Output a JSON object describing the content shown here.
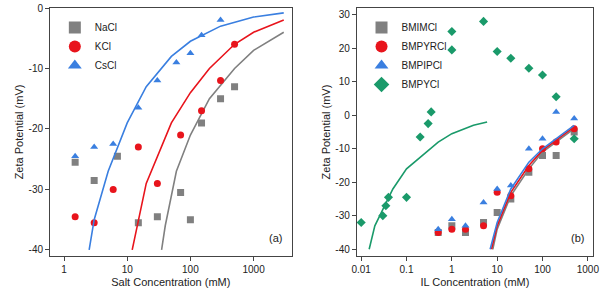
{
  "chart_data": [
    {
      "type": "scatter",
      "xlabel": "Salt Concentration (mM)",
      "ylabel": "Zeta Potential (mV)",
      "annotations": [
        "(a)"
      ],
      "log": "x",
      "xlim": [
        0.6,
        4000
      ],
      "xticks": [
        1,
        10,
        100,
        1000
      ],
      "ylim": [
        -41,
        0
      ],
      "yticks": [
        -40,
        -30,
        -20,
        -10,
        0
      ],
      "legend": "top left",
      "series": [
        {
          "name": "NaCl",
          "color": "#808080",
          "marker": "square",
          "x": [
            1.5,
            3,
            7,
            15,
            30,
            70,
            100,
            150,
            300,
            500
          ],
          "values": [
            -25.5,
            -28.5,
            -24.5,
            -35.5,
            -34.5,
            -30.5,
            -35,
            -19,
            -15,
            -13
          ],
          "fit": {
            "x": [
              35,
              40,
              60,
              100,
              200,
              500,
              1000,
              3000
            ],
            "values": [
              -40,
              -36,
              -27,
              -21,
              -15,
              -10,
              -7,
              -4
            ]
          }
        },
        {
          "name": "KCl",
          "color": "#e8141c",
          "marker": "circle",
          "x": [
            1.5,
            3,
            6,
            15,
            30,
            70,
            150,
            300,
            500
          ],
          "values": [
            -34.5,
            -35.5,
            -30,
            -23,
            -29,
            -21,
            -17,
            -12,
            -6
          ],
          "fit": {
            "x": [
              12,
              15,
              20,
              50,
              100,
              200,
              500,
              1000,
              3000
            ],
            "values": [
              -40,
              -35,
              -29,
              -19,
              -14,
              -10,
              -6,
              -4,
              -2
            ]
          }
        },
        {
          "name": "CsCl",
          "color": "#3a7fe0",
          "marker": "triangle-up",
          "x": [
            1.5,
            3,
            6,
            15,
            30,
            60,
            100,
            150,
            300
          ],
          "values": [
            -24.5,
            -23,
            -22.5,
            -16.5,
            -12,
            -9,
            -7.5,
            -4.5,
            -2
          ],
          "fit": {
            "x": [
              2.5,
              3,
              5,
              10,
              20,
              50,
              100,
              300,
              1000,
              3000
            ],
            "values": [
              -40,
              -35,
              -27,
              -19,
              -13,
              -8,
              -5.5,
              -3,
              -1.5,
              -0.8
            ]
          }
        }
      ]
    },
    {
      "type": "scatter",
      "xlabel": "IL Concentration (mM)",
      "ylabel": "Zeta Potential (mV)",
      "annotations": [
        "(b)"
      ],
      "log": "x",
      "xlim": [
        0.008,
        1300
      ],
      "xticks": [
        0.01,
        0.1,
        1,
        10,
        100,
        1000
      ],
      "ylim": [
        -42,
        32
      ],
      "yticks": [
        -40,
        -30,
        -20,
        -10,
        0,
        10,
        20,
        30
      ],
      "legend": "top left",
      "series": [
        {
          "name": "BMIMCl",
          "color": "#808080",
          "marker": "square",
          "x": [
            0.5,
            1,
            2,
            5,
            10,
            20,
            50,
            100,
            200,
            500
          ],
          "values": [
            -35,
            -33,
            -35,
            -32,
            -29,
            -25,
            -17,
            -12,
            -12,
            -5
          ],
          "fit": {
            "x": [
              8,
              10,
              20,
              50,
              100,
              200,
              500
            ],
            "values": [
              -40,
              -34,
              -24,
              -16,
              -11,
              -8,
              -4
            ]
          }
        },
        {
          "name": "BMPYRCl",
          "color": "#e8141c",
          "marker": "circle",
          "x": [
            0.5,
            1,
            2,
            5,
            10,
            20,
            50,
            100,
            200,
            500
          ],
          "values": [
            -35,
            -34,
            -34,
            -33,
            -23,
            -24,
            -16,
            -10,
            -8,
            -4
          ],
          "fit": {
            "x": [
              7.5,
              10,
              20,
              50,
              100,
              200,
              500
            ],
            "values": [
              -40,
              -33,
              -23,
              -15,
              -10.5,
              -7.5,
              -3.5
            ]
          }
        },
        {
          "name": "BMPIPCl",
          "color": "#3a7fe0",
          "marker": "triangle-up",
          "x": [
            0.5,
            1,
            2,
            5,
            10,
            20,
            50,
            100,
            200,
            500
          ],
          "values": [
            -34,
            -31,
            -33,
            -26,
            -22,
            -21,
            -10,
            -7,
            1,
            -1
          ],
          "fit": {
            "x": [
              7,
              10,
              20,
              50,
              100,
              200,
              500
            ],
            "values": [
              -40,
              -32,
              -22,
              -14,
              -10,
              -7,
              -3
            ]
          }
        },
        {
          "name": "BMPYCl",
          "color": "#1a9a6a",
          "marker": "diamond",
          "x": [
            0.01,
            0.03,
            0.035,
            0.04,
            0.1,
            0.2,
            0.3,
            0.35,
            1,
            1,
            5,
            10,
            20,
            50,
            100,
            200,
            500
          ],
          "values": [
            -32,
            -30,
            -27,
            -24.5,
            -24.5,
            -6.5,
            -2.5,
            1,
            19.5,
            25,
            28,
            19,
            17,
            14,
            12,
            5.5,
            -7
          ],
          "fit": {
            "x": [
              0.015,
              0.02,
              0.05,
              0.1,
              0.5,
              1,
              3,
              6
            ],
            "values": [
              -40,
              -33,
              -22,
              -16,
              -8,
              -5.5,
              -3,
              -2
            ]
          }
        }
      ]
    }
  ]
}
